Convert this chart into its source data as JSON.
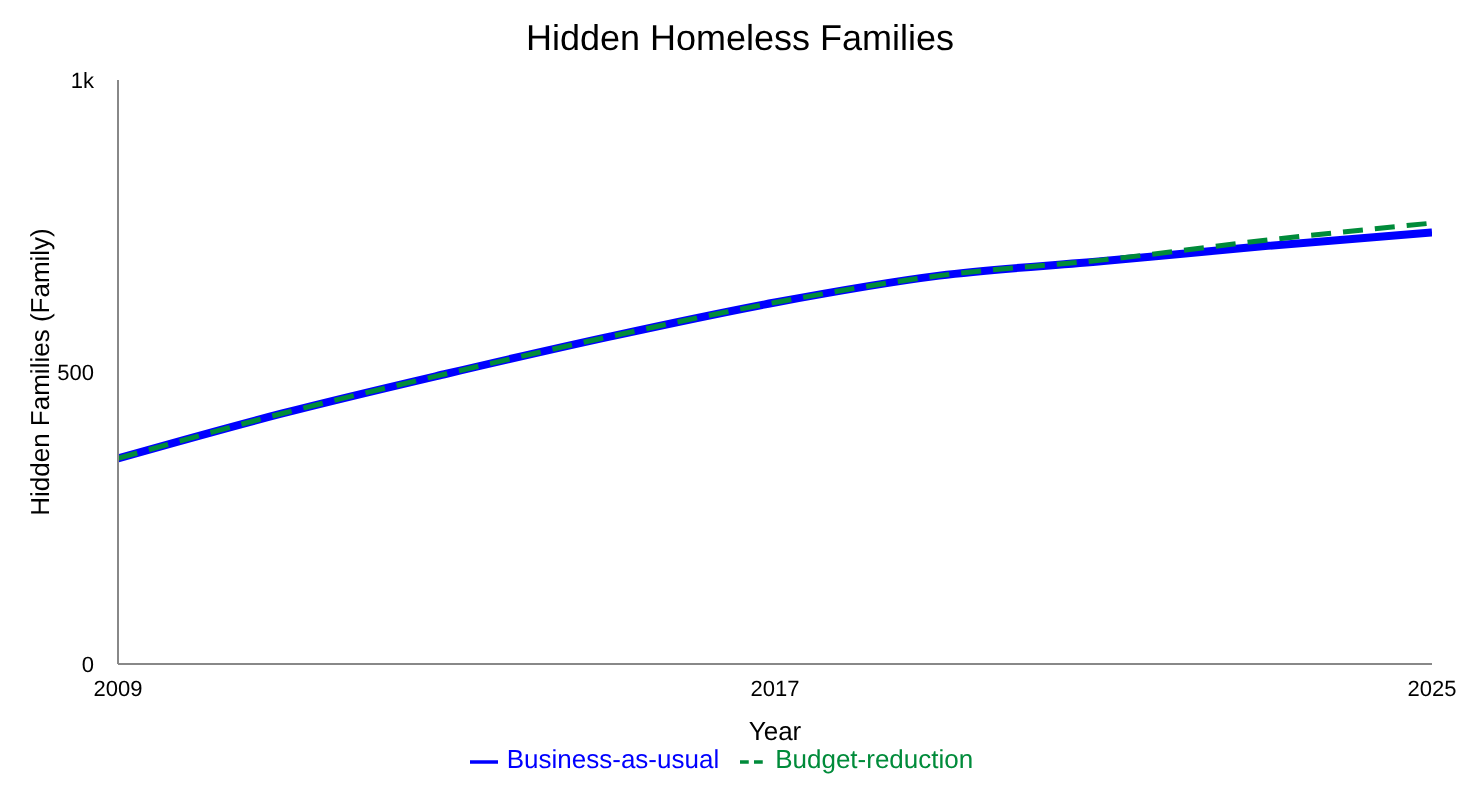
{
  "chart_data": {
    "type": "line",
    "title": "Hidden Homeless Families",
    "xlabel": "Year",
    "ylabel": "Hidden Families (Family)",
    "x": [
      2009,
      2011,
      2013,
      2015,
      2017,
      2019,
      2021,
      2023,
      2025
    ],
    "series": [
      {
        "name": "Business-as-usual",
        "color": "#0000ff",
        "line_style": "solid",
        "values": [
          352,
          429,
          497,
          561,
          619,
          665,
          690,
          716,
          739
        ]
      },
      {
        "name": "Budget-reduction",
        "color": "#008b3a",
        "line_style": "dashed",
        "values": [
          352,
          429,
          497,
          561,
          619,
          665,
          692,
          726,
          755
        ]
      }
    ],
    "xlim": [
      2009,
      2025
    ],
    "xticks": [
      2009,
      2017,
      2025
    ],
    "ylim": [
      0,
      1000
    ],
    "yticks": [
      0,
      500,
      {
        "value": 1000,
        "label": "1k"
      }
    ],
    "grid": false,
    "legend": "bottom",
    "marker": "none"
  }
}
